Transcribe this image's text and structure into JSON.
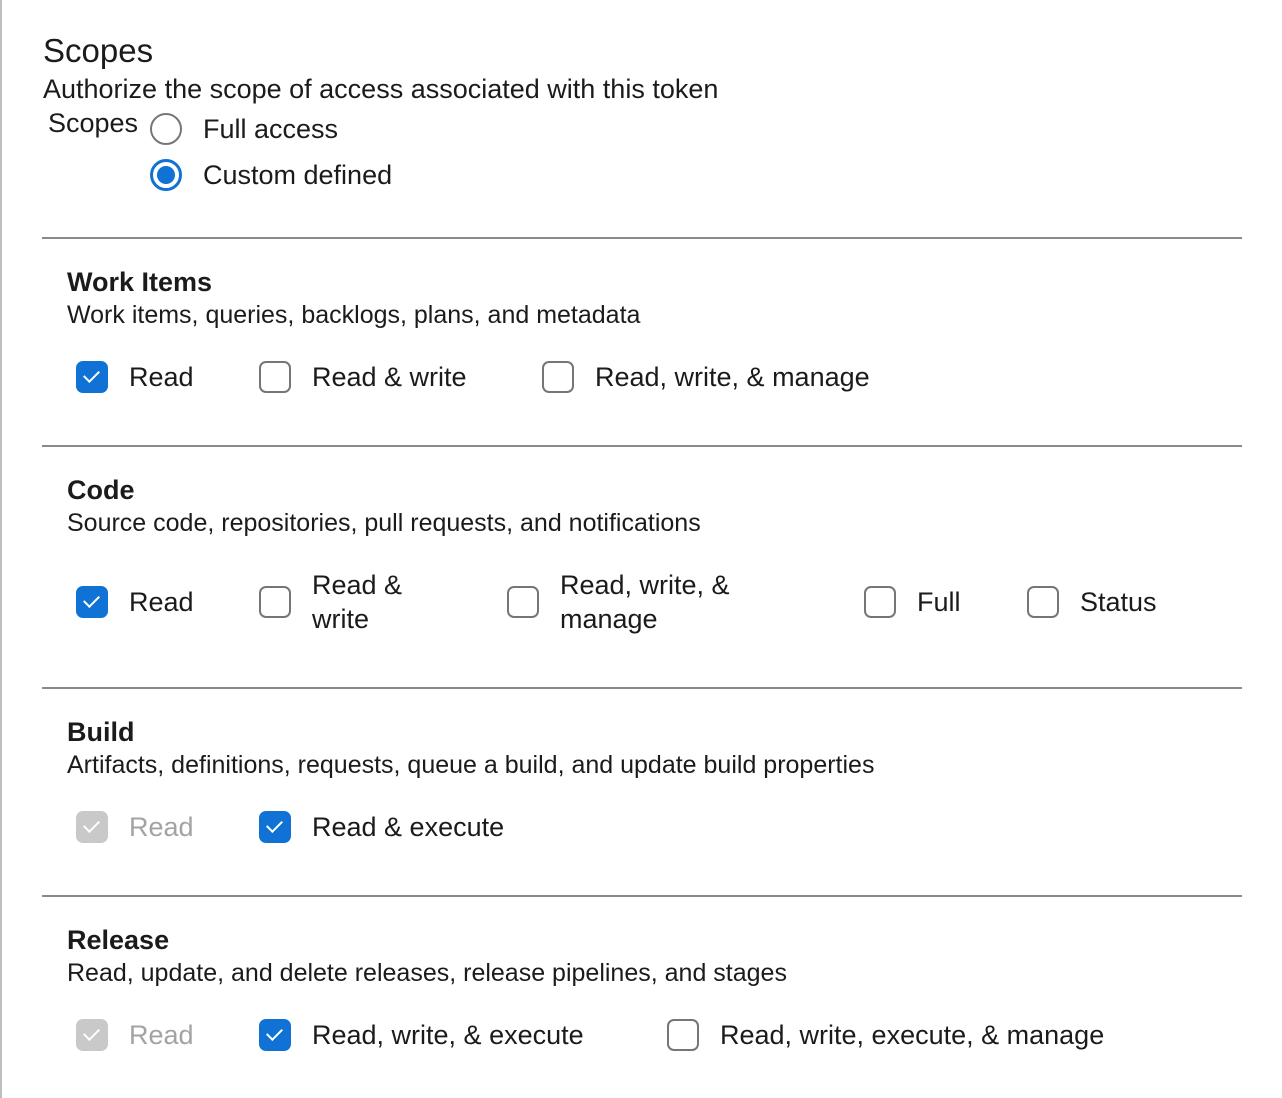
{
  "header": {
    "title": "Scopes",
    "subtitle": "Authorize the scope of access associated with this token",
    "scopes_label": "Scopes",
    "radios": [
      {
        "label": "Full access",
        "selected": false
      },
      {
        "label": "Custom defined",
        "selected": true
      }
    ]
  },
  "colors": {
    "accent": "#0f72d4",
    "disabled": "#c9c9c9"
  },
  "sections": [
    {
      "title": "Work Items",
      "description": "Work items, queries, backlogs, plans, and metadata",
      "options": [
        {
          "label": "Read",
          "checked": true,
          "disabled": false
        },
        {
          "label": "Read & write",
          "checked": false,
          "disabled": false
        },
        {
          "label": "Read, write, & manage",
          "checked": false,
          "disabled": false
        }
      ]
    },
    {
      "title": "Code",
      "description": "Source code, repositories, pull requests, and notifications",
      "options": [
        {
          "label": "Read",
          "checked": true,
          "disabled": false
        },
        {
          "label": "Read &\nwrite",
          "checked": false,
          "disabled": false
        },
        {
          "label": "Read, write, &\nmanage",
          "checked": false,
          "disabled": false
        },
        {
          "label": "Full",
          "checked": false,
          "disabled": false
        },
        {
          "label": "Status",
          "checked": false,
          "disabled": false
        }
      ]
    },
    {
      "title": "Build",
      "description": "Artifacts, definitions, requests, queue a build, and update build properties",
      "options": [
        {
          "label": "Read",
          "checked": true,
          "disabled": true
        },
        {
          "label": "Read & execute",
          "checked": true,
          "disabled": false
        }
      ]
    },
    {
      "title": "Release",
      "description": "Read, update, and delete releases, release pipelines, and stages",
      "options": [
        {
          "label": "Read",
          "checked": true,
          "disabled": true
        },
        {
          "label": "Read, write, & execute",
          "checked": true,
          "disabled": false
        },
        {
          "label": "Read, write, execute, & manage",
          "checked": false,
          "disabled": false
        }
      ]
    }
  ]
}
